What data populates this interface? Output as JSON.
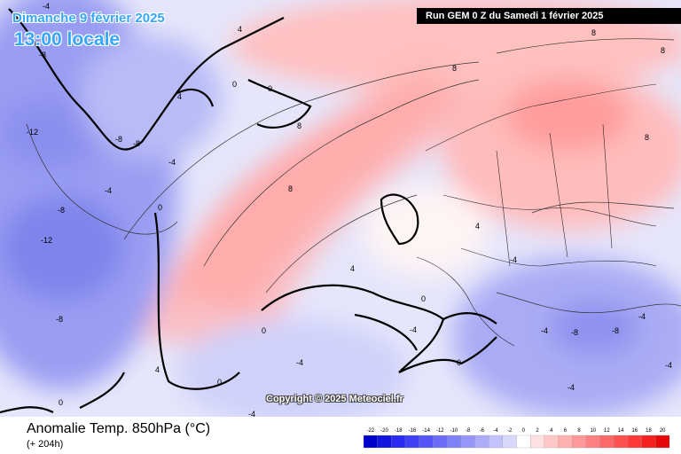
{
  "header": {
    "date": "Dimanche 9 février 2025",
    "time": "13:00 locale",
    "run": "Run GEM 0 Z du Samedi 1 février 2025"
  },
  "copyright": "Copyright © 2025 Meteociel.fr",
  "footer": {
    "variable": "Anomalie Temp. 850hPa (°C)",
    "lead_time": "(+ 204h)"
  },
  "legend": {
    "ticks": [
      "-22",
      "-20",
      "-18",
      "-16",
      "-14",
      "-12",
      "-10",
      "-8",
      "-6",
      "-4",
      "-2",
      "0",
      "2",
      "4",
      "6",
      "8",
      "10",
      "12",
      "14",
      "16",
      "18",
      "20"
    ],
    "colors": [
      "#0000cc",
      "#1414e0",
      "#2a2af0",
      "#3f3ff5",
      "#5555f7",
      "#6b6bf8",
      "#8080f9",
      "#9696fa",
      "#acacfb",
      "#c2c2fc",
      "#d8d8fd",
      "#ffffff",
      "#ffe0e0",
      "#ffc8c8",
      "#ffb0b0",
      "#ff9898",
      "#ff8080",
      "#ff6868",
      "#ff5050",
      "#ff3838",
      "#f52020",
      "#e60808"
    ]
  },
  "map_labels": [
    "-4",
    "-8",
    "-12",
    "-8",
    "-8",
    "-4",
    "-4",
    "0",
    "4",
    "0",
    "8",
    "8",
    "8",
    "4",
    "0",
    "-4",
    "-8",
    "-12",
    "-8",
    "4",
    "0",
    "-4",
    "0",
    "-4",
    "-8",
    "-4",
    "-4",
    "-8",
    "-4",
    "8",
    "8",
    "8",
    "4",
    "0",
    "-4",
    "0",
    "4",
    "0",
    "-4"
  ]
}
